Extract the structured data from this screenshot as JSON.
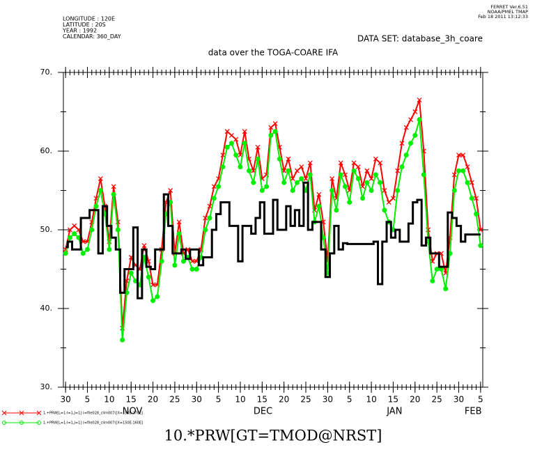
{
  "chart_data": {
    "type": "line",
    "title": "data over the TOGA-COARE IFA",
    "subtitle": "DATA SET: database_3h_coare",
    "header_left": [
      "LONGITUDE : 120E",
      "LATITUDE : 20S",
      "YEAR : 1992",
      "CALENDAR: 360_DAY"
    ],
    "header_right": [
      "FERRET  Ver.6.51",
      "NOAA/PMEL TMAP",
      "Feb 18 2011 13:12:33"
    ],
    "xlabel": "10.*PRW[GT=TMOD@NRST]",
    "x": [
      0,
      1,
      2,
      3,
      4,
      5,
      6,
      7,
      8,
      9,
      10,
      11,
      12,
      13,
      14,
      15,
      16,
      17,
      18,
      19,
      20,
      21,
      22,
      23,
      24,
      25,
      26,
      27,
      28,
      29,
      30,
      31,
      32,
      33,
      34,
      35,
      36,
      37,
      38,
      39,
      40,
      41,
      42,
      43,
      44,
      45,
      46,
      47,
      48,
      49,
      50,
      51,
      52,
      53,
      54,
      55,
      56,
      57,
      58,
      59,
      60,
      61,
      62,
      63,
      64,
      65,
      66,
      67,
      68,
      69,
      70,
      71,
      72,
      73,
      74,
      75,
      76,
      77,
      78,
      79,
      80,
      81,
      82,
      83,
      84,
      85,
      86,
      87,
      88,
      89,
      90,
      91,
      92,
      93,
      94,
      95
    ],
    "series": [
      {
        "name": "PRW",
        "color": "#000000",
        "style": "step",
        "values": [
          47.8,
          48.5,
          47.5,
          47.5,
          51.5,
          51.5,
          52.5,
          52.5,
          47,
          53,
          50.5,
          49,
          47.5,
          42,
          45,
          45,
          50.3,
          41.3,
          47.5,
          45.3,
          45,
          47.5,
          47.5,
          54.5,
          50.5,
          47,
          47,
          47.5,
          46.3,
          47.5,
          47.5,
          45.5,
          46.5,
          46.5,
          50,
          52,
          53.5,
          53.5,
          50.5,
          50.5,
          46,
          50.5,
          50.5,
          49.5,
          51.5,
          53.5,
          49.5,
          49.5,
          53.8,
          50,
          50,
          53,
          50.5,
          52.5,
          50.5,
          56,
          50,
          51,
          51,
          47.5,
          44,
          47,
          50.5,
          47.5,
          48.3,
          48.2,
          48.2,
          48.2,
          48.2,
          48.2,
          48.2,
          48.5,
          43.1,
          48.5,
          51,
          49,
          50,
          48.5,
          48.5,
          50.8,
          53.5,
          53.8,
          48,
          49,
          47,
          47,
          45.3,
          45.3,
          52.2,
          51.5,
          50.5,
          48.5,
          49.4,
          49.4,
          49.4,
          49.4
        ]
      },
      {
        "name": "1.+PRW[L=1:I=1,J=1] (=file028_clim007)[X=150E:170E]",
        "color": "#ff0000",
        "marker": "x",
        "values": [
          47.5,
          50,
          50.5,
          50,
          48.5,
          48.5,
          51,
          54,
          56.5,
          53,
          48.5,
          55.5,
          51,
          37.5,
          43.5,
          46.5,
          45.5,
          45,
          48,
          46,
          43,
          43,
          47.5,
          53.5,
          55,
          47,
          51,
          47,
          47.5,
          46,
          46,
          47.5,
          51.5,
          53,
          55.5,
          56.5,
          59.5,
          62.5,
          62,
          61.5,
          59.5,
          62.5,
          59,
          57.5,
          60.5,
          56.5,
          57,
          63,
          63.5,
          60.5,
          57.5,
          59,
          56.5,
          57.5,
          58,
          56.5,
          58.5,
          52.5,
          54.5,
          51,
          46,
          56.5,
          54,
          58.5,
          57,
          55,
          58.5,
          58,
          55.5,
          57.5,
          56.5,
          59,
          58.5,
          55,
          53.5,
          54,
          57.5,
          61,
          63,
          64,
          65,
          66.5,
          60,
          50,
          46,
          47,
          47,
          44.5,
          49,
          57,
          59.5,
          59.5,
          58,
          56,
          54,
          50
        ]
      },
      {
        "name": "1.+PRW[L=1:I=1,J=1] (=file028_clim007)[X=150E:160E]",
        "color": "#00ee00",
        "marker": "o",
        "values": [
          47,
          49,
          49.5,
          49,
          47,
          47.5,
          50,
          53,
          55,
          52,
          47.5,
          54.5,
          50,
          36,
          42,
          44.5,
          43.5,
          43,
          46.5,
          44,
          41,
          41.5,
          46,
          52,
          53.5,
          45.5,
          49.5,
          46,
          46.5,
          45,
          45,
          46.5,
          50,
          51.5,
          54,
          55.5,
          58,
          60.5,
          61,
          59.5,
          58,
          61,
          57.5,
          56,
          59,
          55,
          55.5,
          62,
          62.5,
          59,
          56,
          57.5,
          55,
          56,
          56.5,
          55,
          57,
          51,
          53,
          49,
          44.5,
          55,
          52.5,
          57,
          55.5,
          53.5,
          57.5,
          56.5,
          54,
          56,
          55,
          57,
          56,
          52.5,
          51,
          50,
          55,
          58,
          59.5,
          61,
          62,
          64,
          57,
          48.5,
          43.5,
          45,
          45,
          42.5,
          47,
          55,
          57.5,
          57.5,
          56,
          54,
          52,
          48
        ]
      }
    ],
    "xlim": [
      -0.5,
      95.5
    ],
    "xticks": [
      {
        "value": 0,
        "label": "30"
      },
      {
        "value": 5,
        "label": "5"
      },
      {
        "value": 10,
        "label": "10"
      },
      {
        "value": 15,
        "label": "15"
      },
      {
        "value": 20,
        "label": "20"
      },
      {
        "value": 25,
        "label": "25"
      },
      {
        "value": 30,
        "label": "30"
      },
      {
        "value": 35,
        "label": "5"
      },
      {
        "value": 40,
        "label": "10"
      },
      {
        "value": 45,
        "label": "15"
      },
      {
        "value": 50,
        "label": "20"
      },
      {
        "value": 55,
        "label": "25"
      },
      {
        "value": 60,
        "label": "30"
      },
      {
        "value": 65,
        "label": "5"
      },
      {
        "value": 70,
        "label": "10"
      },
      {
        "value": 75,
        "label": "15"
      },
      {
        "value": 80,
        "label": "20"
      },
      {
        "value": 85,
        "label": "25"
      },
      {
        "value": 90,
        "label": "30"
      },
      {
        "value": 95,
        "label": "5"
      }
    ],
    "xmonths": [
      {
        "value": 15.3,
        "label": "NOV"
      },
      {
        "value": 45.2,
        "label": "DEC"
      },
      {
        "value": 75.3,
        "label": "JAN"
      },
      {
        "value": 93.3,
        "label": "FEB"
      }
    ],
    "ylim": [
      30,
      70
    ],
    "yticks": [
      {
        "value": 30,
        "label": "30."
      },
      {
        "value": 40,
        "label": "40."
      },
      {
        "value": 50,
        "label": "50."
      },
      {
        "value": 60,
        "label": "60."
      },
      {
        "value": 70,
        "label": "70."
      }
    ],
    "grid": false
  }
}
